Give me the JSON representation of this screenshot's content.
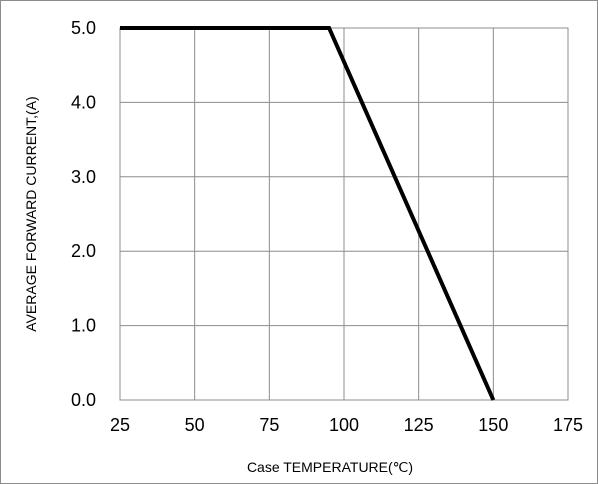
{
  "chart_data": {
    "type": "line",
    "title": "",
    "xlabel": "Case TEMPERATURE(℃)",
    "ylabel": "AVERAGE FORWARD CURRENT,(A)",
    "xlim": [
      25,
      175
    ],
    "ylim": [
      0,
      5
    ],
    "x_ticks": [
      "25",
      "50",
      "75",
      "100",
      "125",
      "150",
      "175"
    ],
    "y_ticks": [
      "0.0",
      "1.0",
      "2.0",
      "3.0",
      "4.0",
      "5.0"
    ],
    "grid": true,
    "legend": "none",
    "series": [
      {
        "x": [
          25,
          95,
          150
        ],
        "y": [
          5.0,
          5.0,
          0.0
        ]
      }
    ],
    "colors": {
      "line": "#000000",
      "grid": "#8c8c8c"
    }
  }
}
